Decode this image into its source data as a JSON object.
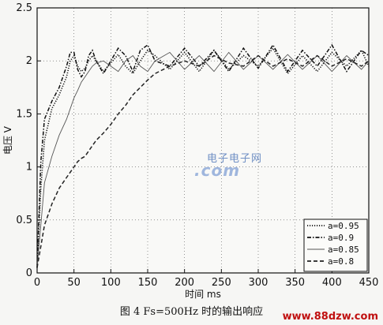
{
  "chart_data": {
    "type": "line",
    "xlabel": "时间 ms",
    "ylabel": "电压 V",
    "xlim": [
      0,
      450
    ],
    "ylim": [
      0,
      2.5
    ],
    "xticks": [
      "0",
      "50",
      "100",
      "150",
      "200",
      "250",
      "300",
      "350",
      "400",
      "450"
    ],
    "yticks": [
      "0",
      "0.5",
      "1",
      "1.5",
      "2",
      "2.5"
    ],
    "grid": true,
    "legend_position": "bottom-right",
    "x": [
      0,
      5,
      10,
      20,
      30,
      40,
      45,
      50,
      55,
      60,
      65,
      70,
      75,
      80,
      90,
      100,
      110,
      120,
      130,
      140,
      150,
      160,
      180,
      200,
      220,
      240,
      260,
      280,
      300,
      320,
      340,
      360,
      380,
      400,
      420,
      440,
      450
    ],
    "series": [
      {
        "name": "a=0.95",
        "style": "dotted",
        "values": [
          0.05,
          0.8,
          1.25,
          1.55,
          1.68,
          1.85,
          2.0,
          2.05,
          1.95,
          1.9,
          1.93,
          2.0,
          2.05,
          2.0,
          1.9,
          1.98,
          2.06,
          1.95,
          1.88,
          2.0,
          2.1,
          2.05,
          1.92,
          2.08,
          1.9,
          2.1,
          1.92,
          2.05,
          1.95,
          2.12,
          1.88,
          2.05,
          1.9,
          2.08,
          1.95,
          2.1,
          1.95
        ]
      },
      {
        "name": "a=0.9",
        "style": "dashdot",
        "values": [
          0.05,
          1.05,
          1.45,
          1.62,
          1.75,
          1.95,
          2.08,
          2.08,
          1.92,
          1.85,
          1.9,
          2.05,
          2.1,
          2.0,
          1.88,
          2.0,
          2.12,
          2.05,
          1.9,
          2.1,
          2.15,
          2.0,
          1.95,
          2.12,
          1.95,
          2.1,
          1.9,
          2.12,
          1.93,
          2.15,
          1.9,
          2.1,
          1.95,
          2.15,
          1.9,
          2.1,
          2.05
        ]
      },
      {
        "name": "a=0.85",
        "style": "solid",
        "values": [
          0.05,
          0.45,
          0.85,
          1.1,
          1.3,
          1.45,
          1.55,
          1.65,
          1.72,
          1.8,
          1.85,
          1.9,
          1.95,
          1.98,
          2.0,
          1.95,
          1.9,
          2.0,
          2.05,
          1.95,
          1.9,
          2.0,
          2.08,
          1.92,
          2.05,
          1.9,
          2.08,
          1.92,
          2.05,
          1.92,
          2.06,
          1.92,
          2.05,
          1.9,
          2.05,
          1.92,
          2.0
        ]
      },
      {
        "name": "a=0.8",
        "style": "dashed",
        "values": [
          0.05,
          0.25,
          0.45,
          0.65,
          0.8,
          0.9,
          0.95,
          1.0,
          1.05,
          1.08,
          1.1,
          1.15,
          1.2,
          1.25,
          1.32,
          1.4,
          1.5,
          1.58,
          1.68,
          1.75,
          1.82,
          1.88,
          1.95,
          2.0,
          1.95,
          2.05,
          1.98,
          1.95,
          2.05,
          1.95,
          2.02,
          1.95,
          2.05,
          1.95,
          2.02,
          1.95,
          2.0
        ]
      }
    ]
  },
  "caption": "图 4  Fs=500Hz 时的输出响应",
  "watermark": {
    "line1": "电子电子网",
    "line2": ".com"
  },
  "site_mark": "www.88dzw.com"
}
